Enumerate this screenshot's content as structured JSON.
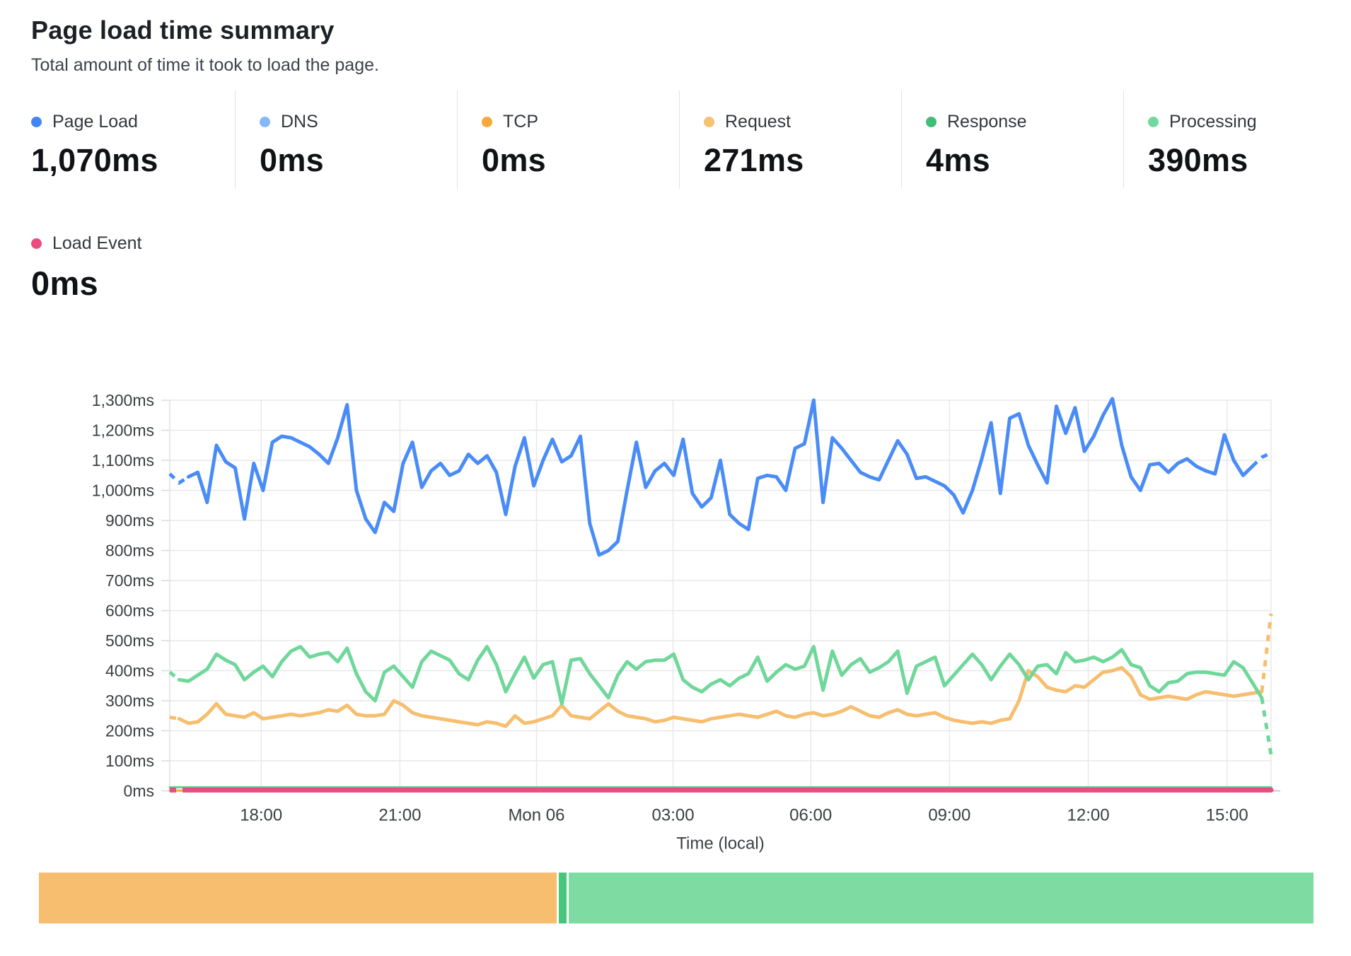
{
  "header": {
    "title": "Page load time summary",
    "subtitle": "Total amount of time it took to load the page."
  },
  "metrics": {
    "items": [
      {
        "id": "page-load",
        "label": "Page Load",
        "value": "1,070ms",
        "color": "#4285F4"
      },
      {
        "id": "dns",
        "label": "DNS",
        "value": "0ms",
        "color": "#85B8F8"
      },
      {
        "id": "tcp",
        "label": "TCP",
        "value": "0ms",
        "color": "#F6A93B"
      },
      {
        "id": "request",
        "label": "Request",
        "value": "271ms",
        "color": "#F6C170"
      },
      {
        "id": "response",
        "label": "Response",
        "value": "4ms",
        "color": "#3FBE76"
      },
      {
        "id": "processing",
        "label": "Processing",
        "value": "390ms",
        "color": "#73D89E"
      },
      {
        "id": "load-event",
        "label": "Load Event",
        "value": "0ms",
        "color": "#EC4B7D"
      }
    ]
  },
  "chart_data": {
    "type": "line",
    "x_axis_title": "Time (local)",
    "ylim": [
      0,
      1300
    ],
    "grid": true,
    "y_tick_labels": [
      "0ms",
      "100ms",
      "200ms",
      "300ms",
      "400ms",
      "500ms",
      "600ms",
      "700ms",
      "800ms",
      "900ms",
      "1,000ms",
      "1,100ms",
      "1,200ms",
      "1,300ms"
    ],
    "x_ticks": [
      {
        "label": "18:00",
        "pos": 0.083
      },
      {
        "label": "21:00",
        "pos": 0.209
      },
      {
        "label": "Mon 06",
        "pos": 0.333
      },
      {
        "label": "03:00",
        "pos": 0.457
      },
      {
        "label": "06:00",
        "pos": 0.582
      },
      {
        "label": "09:00",
        "pos": 0.708
      },
      {
        "label": "12:00",
        "pos": 0.834
      },
      {
        "label": "15:00",
        "pos": 0.96
      }
    ],
    "series": [
      {
        "name": "DNS",
        "color": "#85B8F8",
        "width": 3,
        "dash_head": 0,
        "dash_tail": 0,
        "flat": 1
      },
      {
        "name": "TCP",
        "color": "#F6A93B",
        "width": 3,
        "dash_head": 0,
        "dash_tail": 0,
        "flat": 1
      },
      {
        "name": "Response",
        "color": "#5FCF8E",
        "width": 3,
        "dash_head": 0,
        "dash_tail": 0,
        "flat": 12
      },
      {
        "name": "Load Event",
        "color": "#E74C83",
        "width": 7,
        "dash_head": 2,
        "dash_tail": 0,
        "flat": 3
      },
      {
        "name": "Request",
        "color": "#F6BE6E",
        "width": 5,
        "dash_head": 1,
        "dash_tail": 1,
        "values": [
          245,
          240,
          225,
          230,
          255,
          290,
          255,
          250,
          245,
          260,
          240,
          245,
          250,
          255,
          250,
          255,
          260,
          270,
          265,
          285,
          255,
          250,
          250,
          255,
          300,
          285,
          260,
          250,
          245,
          240,
          235,
          230,
          225,
          220,
          230,
          225,
          215,
          250,
          225,
          230,
          240,
          250,
          285,
          250,
          245,
          240,
          265,
          290,
          265,
          250,
          245,
          240,
          230,
          235,
          245,
          240,
          235,
          230,
          240,
          245,
          250,
          255,
          250,
          245,
          255,
          265,
          250,
          245,
          255,
          260,
          250,
          255,
          265,
          280,
          265,
          250,
          245,
          260,
          270,
          255,
          250,
          255,
          260,
          245,
          235,
          230,
          225,
          230,
          225,
          235,
          240,
          300,
          400,
          380,
          345,
          335,
          330,
          350,
          345,
          370,
          395,
          400,
          410,
          380,
          320,
          305,
          310,
          315,
          310,
          305,
          320,
          330,
          325,
          320,
          315,
          320,
          325,
          330,
          590
        ]
      },
      {
        "name": "Processing",
        "color": "#70D79A",
        "width": 5,
        "dash_head": 1,
        "dash_tail": 1,
        "values": [
          395,
          370,
          365,
          385,
          405,
          455,
          435,
          420,
          370,
          395,
          415,
          380,
          430,
          465,
          480,
          445,
          455,
          460,
          430,
          475,
          390,
          330,
          300,
          395,
          415,
          380,
          345,
          430,
          465,
          450,
          435,
          390,
          370,
          435,
          480,
          420,
          330,
          390,
          445,
          375,
          420,
          430,
          290,
          435,
          440,
          390,
          350,
          310,
          385,
          430,
          405,
          430,
          435,
          435,
          455,
          370,
          345,
          330,
          355,
          370,
          350,
          375,
          390,
          445,
          365,
          395,
          420,
          405,
          415,
          480,
          335,
          465,
          385,
          420,
          440,
          395,
          410,
          430,
          465,
          325,
          415,
          430,
          445,
          350,
          385,
          420,
          455,
          420,
          370,
          415,
          455,
          420,
          370,
          415,
          420,
          390,
          460,
          430,
          435,
          445,
          430,
          445,
          470,
          420,
          410,
          350,
          330,
          360,
          365,
          390,
          395,
          395,
          390,
          385,
          430,
          410,
          360,
          310,
          120
        ]
      },
      {
        "name": "Page Load",
        "color": "#4A8CF7",
        "width": 5,
        "dash_head": 2,
        "dash_tail": 2,
        "values": [
          1055,
          1025,
          1045,
          1060,
          960,
          1150,
          1095,
          1075,
          905,
          1090,
          1000,
          1160,
          1180,
          1175,
          1160,
          1145,
          1120,
          1090,
          1175,
          1285,
          1000,
          905,
          860,
          960,
          930,
          1090,
          1160,
          1010,
          1065,
          1090,
          1050,
          1065,
          1120,
          1090,
          1115,
          1060,
          920,
          1080,
          1175,
          1015,
          1100,
          1170,
          1095,
          1115,
          1180,
          890,
          785,
          800,
          830,
          1000,
          1160,
          1010,
          1065,
          1090,
          1050,
          1170,
          990,
          945,
          975,
          1100,
          920,
          890,
          870,
          1040,
          1050,
          1045,
          1000,
          1140,
          1155,
          1300,
          960,
          1175,
          1140,
          1100,
          1060,
          1045,
          1035,
          1100,
          1165,
          1120,
          1040,
          1045,
          1030,
          1015,
          985,
          925,
          1000,
          1105,
          1225,
          990,
          1240,
          1255,
          1150,
          1085,
          1025,
          1280,
          1190,
          1275,
          1130,
          1180,
          1250,
          1305,
          1150,
          1045,
          1000,
          1085,
          1090,
          1060,
          1090,
          1105,
          1080,
          1065,
          1055,
          1185,
          1100,
          1050,
          1080,
          1110,
          1125
        ]
      }
    ]
  },
  "breakdown_bar": {
    "segments": [
      {
        "name": "request",
        "color": "#F6BE6E",
        "pct": 40.75
      },
      {
        "name": "response",
        "color": "#47C77D",
        "pct": 0.6
      },
      {
        "name": "processing",
        "color": "#7EDCA3",
        "pct": 58.65
      }
    ]
  }
}
